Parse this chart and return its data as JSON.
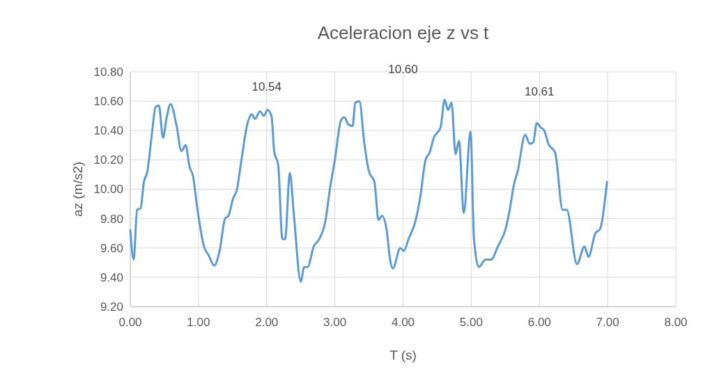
{
  "chart_data": {
    "type": "line",
    "title": "Aceleracion eje z vs t",
    "xlabel": "T (s)",
    "ylabel": "az (m/s2)",
    "annotations": [
      "10.54",
      "10.60",
      "10.61"
    ],
    "xlim": [
      0,
      8
    ],
    "xticks": [
      {
        "value": 0,
        "label": "0.00"
      },
      {
        "value": 1,
        "label": "1.00"
      },
      {
        "value": 2,
        "label": "2.00"
      },
      {
        "value": 3,
        "label": "3.00"
      },
      {
        "value": 4,
        "label": "4.00"
      },
      {
        "value": 5,
        "label": "5.00"
      },
      {
        "value": 6,
        "label": "6.00"
      },
      {
        "value": 7,
        "label": "7.00"
      },
      {
        "value": 8,
        "label": "8.00"
      }
    ],
    "ylim": [
      9.2,
      10.8
    ],
    "yticks": [
      {
        "value": 9.2,
        "label": "9.20"
      },
      {
        "value": 9.4,
        "label": "9.40"
      },
      {
        "value": 9.6,
        "label": "9.60"
      },
      {
        "value": 9.8,
        "label": "9.80"
      },
      {
        "value": 10,
        "label": "10.00"
      },
      {
        "value": 10.2,
        "label": "10.20"
      },
      {
        "value": 10.4,
        "label": "10.40"
      },
      {
        "value": 10.6,
        "label": "10.60"
      },
      {
        "value": 10.8,
        "label": "10.80"
      }
    ],
    "grid": true,
    "marker": "none",
    "line_style": "solid",
    "x": [
      0,
      0.05,
      0.1,
      0.15,
      0.2,
      0.25,
      0.32,
      0.37,
      0.42,
      0.48,
      0.53,
      0.59,
      0.68,
      0.75,
      0.81,
      0.87,
      0.92,
      0.98,
      1.08,
      1.15,
      1.23,
      1.31,
      1.39,
      1.44,
      1.51,
      1.56,
      1.63,
      1.72,
      1.78,
      1.83,
      1.9,
      1.96,
      2.01,
      2.07,
      2.11,
      2.17,
      2.23,
      2.27,
      2.34,
      2.4,
      2.5,
      2.55,
      2.6,
      2.69,
      2.77,
      2.86,
      2.93,
      3,
      3.09,
      3.14,
      3.2,
      3.26,
      3.3,
      3.36,
      3.43,
      3.5,
      3.58,
      3.64,
      3.69,
      3.76,
      3.81,
      3.85,
      3.96,
      4.01,
      4.08,
      4.18,
      4.25,
      4.33,
      4.39,
      4.45,
      4.55,
      4.61,
      4.66,
      4.71,
      4.77,
      4.82,
      4.89,
      4.99,
      5.04,
      5.11,
      5.21,
      5.29,
      5.39,
      5.51,
      5.56,
      5.63,
      5.68,
      5.79,
      5.86,
      5.91,
      5.96,
      6.02,
      6.07,
      6.13,
      6.23,
      6.34,
      6.4,
      6.55,
      6.66,
      6.72,
      6.82,
      6.89,
      6.99
    ],
    "series": [
      {
        "color": "#5b9bd5",
        "values": [
          9.72,
          9.52,
          9.86,
          9.87,
          10.05,
          10.12,
          10.39,
          10.56,
          10.57,
          10.35,
          10.48,
          10.58,
          10.43,
          10.26,
          10.3,
          10.15,
          10.09,
          9.88,
          9.61,
          9.55,
          9.48,
          9.58,
          9.8,
          9.82,
          9.94,
          9.99,
          10.2,
          10.45,
          10.51,
          10.48,
          10.53,
          10.5,
          10.54,
          10.5,
          10.26,
          10.16,
          9.66,
          9.66,
          10.11,
          9.82,
          9.37,
          9.47,
          9.47,
          9.61,
          9.66,
          9.78,
          10.01,
          10.2,
          10.47,
          10.49,
          10.44,
          10.43,
          10.59,
          10.6,
          10.32,
          10.12,
          10.05,
          9.79,
          9.82,
          9.72,
          9.52,
          9.46,
          9.6,
          9.58,
          9.66,
          9.78,
          9.94,
          10.2,
          10.25,
          10.35,
          10.42,
          10.61,
          10.54,
          10.59,
          10.24,
          10.33,
          9.84,
          10.39,
          9.66,
          9.47,
          9.52,
          9.52,
          9.61,
          9.74,
          9.85,
          10.04,
          10.12,
          10.37,
          10.31,
          10.32,
          10.45,
          10.42,
          10.4,
          10.31,
          10.25,
          9.86,
          9.86,
          9.49,
          9.61,
          9.54,
          9.7,
          9.73,
          10.05
        ]
      }
    ]
  }
}
